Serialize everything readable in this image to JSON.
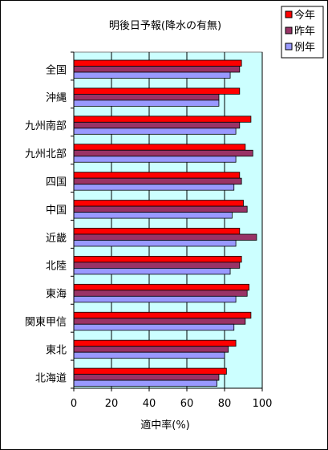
{
  "chart_data": {
    "type": "bar",
    "orientation": "horizontal",
    "title": "明後日予報(降水の有無)",
    "xlabel": "適中率(%)",
    "ylabel": "",
    "xlim": [
      0,
      100
    ],
    "x_ticks": [
      0,
      20,
      40,
      60,
      80,
      100
    ],
    "grid": "vertical gridlines",
    "legend_position": "top-right",
    "categories": [
      "全国",
      "沖縄",
      "九州南部",
      "九州北部",
      "四国",
      "中国",
      "近畿",
      "北陸",
      "東海",
      "関東甲信",
      "東北",
      "北海道"
    ],
    "series": [
      {
        "name": "今年",
        "color": "#ff0000",
        "values": [
          89,
          88,
          94,
          91,
          88,
          90,
          88,
          89,
          93,
          94,
          86,
          81
        ]
      },
      {
        "name": "昨年",
        "color": "#993366",
        "values": [
          88,
          77,
          88,
          95,
          89,
          92,
          97,
          88,
          92,
          91,
          82,
          77
        ]
      },
      {
        "name": "例年",
        "color": "#9999ff",
        "values": [
          83,
          77,
          86,
          86,
          85,
          84,
          86,
          83,
          86,
          85,
          80,
          76
        ]
      }
    ]
  },
  "colors": {
    "plot_background": "#ccffff",
    "bar_outline": "#000000"
  }
}
